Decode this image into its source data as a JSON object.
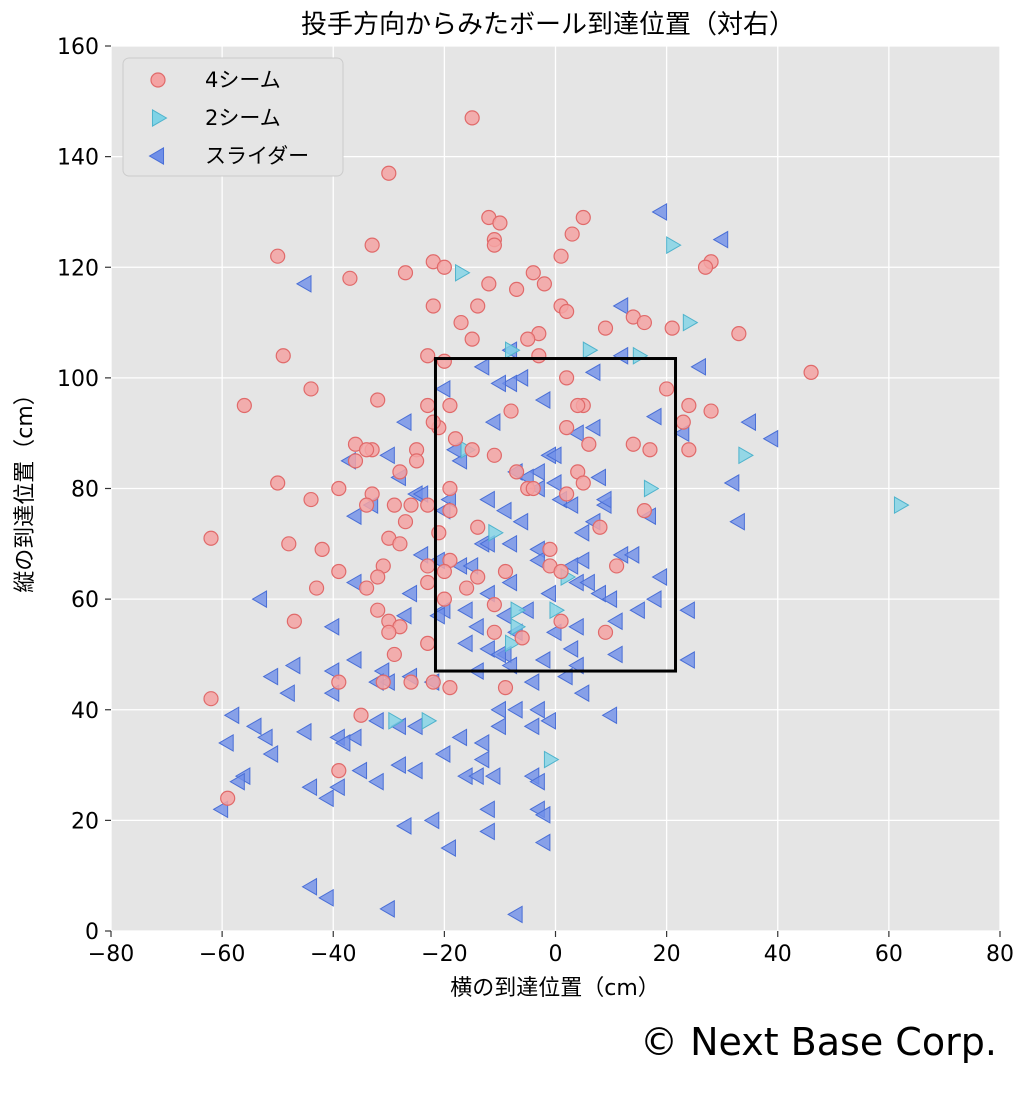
{
  "copyright": "© Next Base Corp.",
  "chart_data": {
    "type": "scatter",
    "title": "投手方向からみたボール到達位置（対右）",
    "xlabel": "横の到達位置（cm）",
    "ylabel": "縦の到達位置（cm）",
    "xlim": [
      -80,
      80
    ],
    "ylim": [
      0,
      160
    ],
    "xticks": [
      "−80",
      "−60",
      "−40",
      "−20",
      "0",
      "20",
      "40",
      "60",
      "80"
    ],
    "yticks": [
      "0",
      "20",
      "40",
      "60",
      "80",
      "100",
      "120",
      "140",
      "160"
    ],
    "grid": true,
    "legend_position": "top-left",
    "strike_zone": {
      "x": [
        -21.6,
        21.6
      ],
      "y": [
        47,
        103.5
      ]
    },
    "series": [
      {
        "name": "4シーム",
        "marker": "circle",
        "color": "#f4a3a3",
        "edge": "#e06a6a",
        "points": [
          [
            -15,
            147
          ],
          [
            -30,
            137
          ],
          [
            -12,
            129
          ],
          [
            -10,
            128
          ],
          [
            5,
            129
          ],
          [
            3,
            126
          ],
          [
            -11,
            125
          ],
          [
            -33,
            124
          ],
          [
            -11,
            124
          ],
          [
            1,
            122
          ],
          [
            -50,
            122
          ],
          [
            -22,
            121
          ],
          [
            -20,
            120
          ],
          [
            28,
            121
          ],
          [
            27,
            120
          ],
          [
            -4,
            119
          ],
          [
            -27,
            119
          ],
          [
            -37,
            118
          ],
          [
            -2,
            117
          ],
          [
            -12,
            117
          ],
          [
            -7,
            116
          ],
          [
            -22,
            113
          ],
          [
            -14,
            113
          ],
          [
            1,
            113
          ],
          [
            2,
            112
          ],
          [
            14,
            111
          ],
          [
            -17,
            110
          ],
          [
            16,
            110
          ],
          [
            9,
            109
          ],
          [
            21,
            109
          ],
          [
            -3,
            108
          ],
          [
            33,
            108
          ],
          [
            -5,
            107
          ],
          [
            -15,
            107
          ],
          [
            -49,
            104
          ],
          [
            -23,
            104
          ],
          [
            -3,
            104
          ],
          [
            -20,
            103
          ],
          [
            46,
            101
          ],
          [
            2,
            100
          ],
          [
            -44,
            98
          ],
          [
            20,
            98
          ],
          [
            -32,
            96
          ],
          [
            -56,
            95
          ],
          [
            -23,
            95
          ],
          [
            -19,
            95
          ],
          [
            5,
            95
          ],
          [
            24,
            95
          ],
          [
            4,
            95
          ],
          [
            -8,
            94
          ],
          [
            28,
            94
          ],
          [
            -21,
            91
          ],
          [
            -22,
            92
          ],
          [
            23,
            92
          ],
          [
            2,
            91
          ],
          [
            -18,
            89
          ],
          [
            -36,
            88
          ],
          [
            -33,
            87
          ],
          [
            14,
            88
          ],
          [
            17,
            87
          ],
          [
            -15,
            87
          ],
          [
            -25,
            87
          ],
          [
            6,
            88
          ],
          [
            24,
            87
          ],
          [
            -34,
            87
          ],
          [
            -11,
            86
          ],
          [
            -36,
            85
          ],
          [
            -25,
            85
          ],
          [
            -28,
            83
          ],
          [
            -7,
            83
          ],
          [
            4,
            83
          ],
          [
            5,
            81
          ],
          [
            -50,
            81
          ],
          [
            -33,
            79
          ],
          [
            -39,
            80
          ],
          [
            -19,
            80
          ],
          [
            -5,
            80
          ],
          [
            -4,
            80
          ],
          [
            2,
            79
          ],
          [
            -44,
            78
          ],
          [
            -34,
            77
          ],
          [
            -29,
            77
          ],
          [
            -26,
            77
          ],
          [
            -23,
            77
          ],
          [
            -19,
            76
          ],
          [
            16,
            76
          ],
          [
            -27,
            74
          ],
          [
            -21,
            72
          ],
          [
            8,
            73
          ],
          [
            -30,
            71
          ],
          [
            -14,
            73
          ],
          [
            -28,
            70
          ],
          [
            -42,
            69
          ],
          [
            -48,
            70
          ],
          [
            -62,
            71
          ],
          [
            -1,
            69
          ],
          [
            -19,
            67
          ],
          [
            -1,
            66
          ],
          [
            11,
            66
          ],
          [
            -23,
            66
          ],
          [
            -31,
            66
          ],
          [
            -39,
            65
          ],
          [
            -20,
            65
          ],
          [
            1,
            65
          ],
          [
            -9,
            65
          ],
          [
            -14,
            64
          ],
          [
            -23,
            63
          ],
          [
            -32,
            64
          ],
          [
            -16,
            62
          ],
          [
            -43,
            62
          ],
          [
            -34,
            62
          ],
          [
            -20,
            60
          ],
          [
            -11,
            59
          ],
          [
            -32,
            58
          ],
          [
            -30,
            56
          ],
          [
            -28,
            55
          ],
          [
            1,
            56
          ],
          [
            -30,
            54
          ],
          [
            -47,
            56
          ],
          [
            -11,
            54
          ],
          [
            9,
            54
          ],
          [
            -6,
            53
          ],
          [
            -29,
            50
          ],
          [
            -23,
            52
          ],
          [
            -31,
            45
          ],
          [
            -22,
            45
          ],
          [
            -26,
            45
          ],
          [
            -19,
            44
          ],
          [
            -9,
            44
          ],
          [
            -39,
            45
          ],
          [
            -35,
            39
          ],
          [
            -62,
            42
          ],
          [
            -39,
            29
          ],
          [
            -59,
            24
          ]
        ]
      },
      {
        "name": "2シーム",
        "marker": "triangle-right",
        "color": "#7fd3e6",
        "edge": "#4fb3cc",
        "points": [
          [
            -17,
            119
          ],
          [
            21,
            124
          ],
          [
            24,
            110
          ],
          [
            -8,
            105
          ],
          [
            6,
            105
          ],
          [
            15,
            104
          ],
          [
            -16,
            87
          ],
          [
            34,
            86
          ],
          [
            17,
            80
          ],
          [
            62,
            77
          ],
          [
            -11,
            72
          ],
          [
            -7,
            55
          ],
          [
            -8,
            52
          ],
          [
            -7,
            58
          ],
          [
            0,
            58
          ],
          [
            2,
            64
          ],
          [
            -29,
            38
          ],
          [
            -23,
            38
          ],
          [
            -1,
            31
          ]
        ]
      },
      {
        "name": "スライダー",
        "marker": "triangle-left",
        "color": "#6f8fe8",
        "edge": "#4a6fd6",
        "points": [
          [
            19,
            130
          ],
          [
            30,
            125
          ],
          [
            -45,
            117
          ],
          [
            12,
            113
          ],
          [
            -8,
            105
          ],
          [
            -6,
            100
          ],
          [
            -13,
            102
          ],
          [
            -8,
            99
          ],
          [
            12,
            104
          ],
          [
            26,
            102
          ],
          [
            7,
            101
          ],
          [
            -10,
            99
          ],
          [
            -20,
            98
          ],
          [
            -2,
            96
          ],
          [
            18,
            93
          ],
          [
            35,
            92
          ],
          [
            -27,
            92
          ],
          [
            -11,
            92
          ],
          [
            4,
            90
          ],
          [
            7,
            91
          ],
          [
            -1,
            86
          ],
          [
            0,
            86
          ],
          [
            -18,
            87
          ],
          [
            23,
            90
          ],
          [
            39,
            89
          ],
          [
            -30,
            86
          ],
          [
            -17,
            85
          ],
          [
            -37,
            85
          ],
          [
            -7,
            83
          ],
          [
            -3,
            83
          ],
          [
            8,
            82
          ],
          [
            -5,
            82
          ],
          [
            -3,
            80
          ],
          [
            -25,
            79
          ],
          [
            1,
            78
          ],
          [
            3,
            77
          ],
          [
            9,
            77
          ],
          [
            -24,
            79
          ],
          [
            -19,
            78
          ],
          [
            -33,
            77
          ],
          [
            -12,
            78
          ],
          [
            9,
            78
          ],
          [
            -28,
            82
          ],
          [
            0,
            81
          ],
          [
            32,
            81
          ],
          [
            -36,
            75
          ],
          [
            -20,
            76
          ],
          [
            -9,
            76
          ],
          [
            17,
            75
          ],
          [
            33,
            74
          ],
          [
            -6,
            74
          ],
          [
            5,
            72
          ],
          [
            7,
            74
          ],
          [
            -13,
            70
          ],
          [
            -8,
            70
          ],
          [
            -3,
            69
          ],
          [
            12,
            68
          ],
          [
            14,
            68
          ],
          [
            -12,
            70
          ],
          [
            -24,
            68
          ],
          [
            5,
            67
          ],
          [
            -21,
            67
          ],
          [
            -17,
            66
          ],
          [
            3,
            66
          ],
          [
            -3,
            67
          ],
          [
            19,
            64
          ],
          [
            -15,
            66
          ],
          [
            -36,
            63
          ],
          [
            -8,
            63
          ],
          [
            4,
            63
          ],
          [
            6,
            63
          ],
          [
            -26,
            61
          ],
          [
            -12,
            61
          ],
          [
            -1,
            61
          ],
          [
            8,
            61
          ],
          [
            18,
            60
          ],
          [
            -53,
            60
          ],
          [
            -20,
            58
          ],
          [
            -16,
            58
          ],
          [
            10,
            60
          ],
          [
            15,
            58
          ],
          [
            24,
            58
          ],
          [
            -21,
            57
          ],
          [
            -27,
            57
          ],
          [
            -9,
            57
          ],
          [
            -5,
            58
          ],
          [
            -40,
            55
          ],
          [
            -14,
            55
          ],
          [
            4,
            55
          ],
          [
            -7,
            54
          ],
          [
            0,
            54
          ],
          [
            11,
            56
          ],
          [
            -36,
            49
          ],
          [
            -16,
            52
          ],
          [
            -12,
            51
          ],
          [
            -9,
            50
          ],
          [
            3,
            51
          ],
          [
            -2,
            49
          ],
          [
            -10,
            50
          ],
          [
            4,
            48
          ],
          [
            -8,
            48
          ],
          [
            11,
            50
          ],
          [
            24,
            49
          ],
          [
            -31,
            47
          ],
          [
            -40,
            47
          ],
          [
            -47,
            48
          ],
          [
            -30,
            45
          ],
          [
            -14,
            47
          ],
          [
            -26,
            46
          ],
          [
            -4,
            45
          ],
          [
            2,
            46
          ],
          [
            -32,
            45
          ],
          [
            -48,
            43
          ],
          [
            -51,
            46
          ],
          [
            -40,
            43
          ],
          [
            -22,
            45
          ],
          [
            5,
            43
          ],
          [
            -58,
            39
          ],
          [
            -32,
            38
          ],
          [
            -25,
            37
          ],
          [
            -17,
            35
          ],
          [
            -10,
            40
          ],
          [
            -7,
            40
          ],
          [
            -3,
            40
          ],
          [
            -1,
            38
          ],
          [
            10,
            39
          ],
          [
            -36,
            35
          ],
          [
            -39,
            35
          ],
          [
            -45,
            36
          ],
          [
            -54,
            37
          ],
          [
            -52,
            35
          ],
          [
            -59,
            34
          ],
          [
            -38,
            34
          ],
          [
            -28,
            37
          ],
          [
            -13,
            34
          ],
          [
            -10,
            37
          ],
          [
            -4,
            37
          ],
          [
            -20,
            32
          ],
          [
            -13,
            31
          ],
          [
            -35,
            29
          ],
          [
            -25,
            29
          ],
          [
            -28,
            30
          ],
          [
            -32,
            27
          ],
          [
            -51,
            32
          ],
          [
            -56,
            28
          ],
          [
            -57,
            27
          ],
          [
            -39,
            26
          ],
          [
            -16,
            28
          ],
          [
            -14,
            28
          ],
          [
            -11,
            28
          ],
          [
            -4,
            28
          ],
          [
            -3,
            27
          ],
          [
            -44,
            26
          ],
          [
            -41,
            24
          ],
          [
            -60,
            22
          ],
          [
            -12,
            22
          ],
          [
            -3,
            22
          ],
          [
            -2,
            21
          ],
          [
            -22,
            20
          ],
          [
            -27,
            19
          ],
          [
            -12,
            18
          ],
          [
            -2,
            16
          ],
          [
            -19,
            15
          ],
          [
            -44,
            8
          ],
          [
            -41,
            6
          ],
          [
            -30,
            4
          ],
          [
            -7,
            3
          ]
        ]
      }
    ]
  }
}
